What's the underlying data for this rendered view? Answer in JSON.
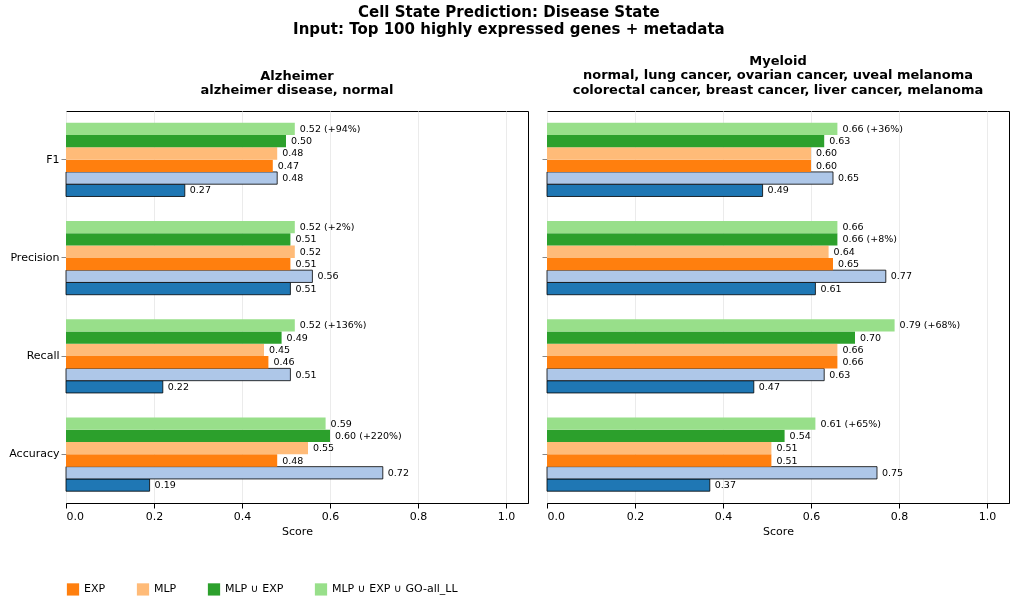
{
  "chart_data": [
    {
      "type": "other",
      "title": "Cell State Prediction: Disease State",
      "subtitle": "Input: Top 100 highly expressed genes + metadata"
    },
    {
      "type": "bar",
      "orientation": "horizontal",
      "title": "Alzheimer",
      "subtitle": "alzheimer disease, normal",
      "xlabel": "Score",
      "categories": [
        "F1",
        "Precision",
        "Recall",
        "Accuracy"
      ],
      "xlim": [
        0,
        1.05
      ],
      "xticks": [
        {
          "value": 0,
          "label": "0.0"
        },
        {
          "value": 0.2,
          "label": "0.2"
        },
        {
          "value": 0.4,
          "label": "0.4"
        },
        {
          "value": 0.6,
          "label": "0.6"
        },
        {
          "value": 0.8,
          "label": "0.8"
        },
        {
          "value": 1,
          "label": "1.0"
        }
      ],
      "grid": "x",
      "legend": "bottom",
      "series": [
        {
          "color": "#1f77b4",
          "values": [
            0.27,
            0.51,
            0.22,
            0.19
          ],
          "value_labels": [
            "0.27",
            "0.51",
            "0.22",
            "0.19"
          ]
        },
        {
          "color": "#aec7e8",
          "values": [
            0.48,
            0.56,
            0.51,
            0.72
          ],
          "value_labels": [
            "0.48",
            "0.56",
            "0.51",
            "0.72"
          ]
        },
        {
          "name": "EXP",
          "color": "#ff7f0e",
          "values": [
            0.47,
            0.51,
            0.46,
            0.48
          ],
          "value_labels": [
            "0.47",
            "0.51",
            "0.46",
            "0.48"
          ]
        },
        {
          "name": "MLP",
          "color": "#ffbb78",
          "values": [
            0.48,
            0.52,
            0.45,
            0.55
          ],
          "value_labels": [
            "0.48",
            "0.52",
            "0.45",
            "0.55"
          ]
        },
        {
          "name": "MLP ∪ EXP",
          "color": "#2ca02c",
          "values": [
            0.5,
            0.51,
            0.49,
            0.6
          ],
          "value_labels": [
            "0.50",
            "0.51",
            "0.49",
            "0.60 (+220%)"
          ]
        },
        {
          "name": "MLP ∪ EXP ∪ GO-all_LL",
          "color": "#98df8a",
          "values": [
            0.52,
            0.52,
            0.52,
            0.59
          ],
          "value_labels": [
            "0.52 (+94%)",
            "0.52 (+2%)",
            "0.52 (+136%)",
            "0.59"
          ]
        }
      ]
    },
    {
      "type": "bar",
      "orientation": "horizontal",
      "title": "Myeloid",
      "subtitle": "normal, lung cancer, ovarian cancer, uveal melanoma\ncolorectal cancer, breast cancer, liver cancer, melanoma",
      "xlabel": "Score",
      "categories": [
        null,
        null,
        null,
        null
      ],
      "xlim": [
        0,
        1.05
      ],
      "xticks": [
        {
          "value": 0,
          "label": "0.0"
        },
        {
          "value": 0.2,
          "label": "0.2"
        },
        {
          "value": 0.4,
          "label": "0.4"
        },
        {
          "value": 0.6,
          "label": "0.6"
        },
        {
          "value": 0.8,
          "label": "0.8"
        },
        {
          "value": 1,
          "label": "1.0"
        }
      ],
      "grid": "x",
      "tick_labels": "x",
      "series": [
        {
          "color": "#1f77b4",
          "values": [
            0.49,
            0.61,
            0.47,
            0.37
          ],
          "value_labels": [
            "0.49",
            "0.61",
            "0.47",
            "0.37"
          ]
        },
        {
          "color": "#aec7e8",
          "values": [
            0.65,
            0.77,
            0.63,
            0.75
          ],
          "value_labels": [
            "0.65",
            "0.77",
            "0.63",
            "0.75"
          ]
        },
        {
          "name": "EXP",
          "color": "#ff7f0e",
          "values": [
            0.6,
            0.65,
            0.66,
            0.51
          ],
          "value_labels": [
            "0.60",
            "0.65",
            "0.66",
            "0.51"
          ]
        },
        {
          "name": "MLP",
          "color": "#ffbb78",
          "values": [
            0.6,
            0.64,
            0.66,
            0.51
          ],
          "value_labels": [
            "0.60",
            "0.64",
            "0.66",
            "0.51"
          ]
        },
        {
          "name": "MLP ∪ EXP",
          "color": "#2ca02c",
          "values": [
            0.63,
            0.66,
            0.7,
            0.54
          ],
          "value_labels": [
            "0.63",
            "0.66 (+8%)",
            "0.70",
            "0.54"
          ]
        },
        {
          "name": "MLP ∪ EXP ∪ GO-all_LL",
          "color": "#98df8a",
          "values": [
            0.66,
            0.66,
            0.79,
            0.61
          ],
          "value_labels": [
            "0.66 (+36%)",
            "0.66",
            "0.79 (+68%)",
            "0.61 (+65%)"
          ]
        }
      ]
    }
  ]
}
